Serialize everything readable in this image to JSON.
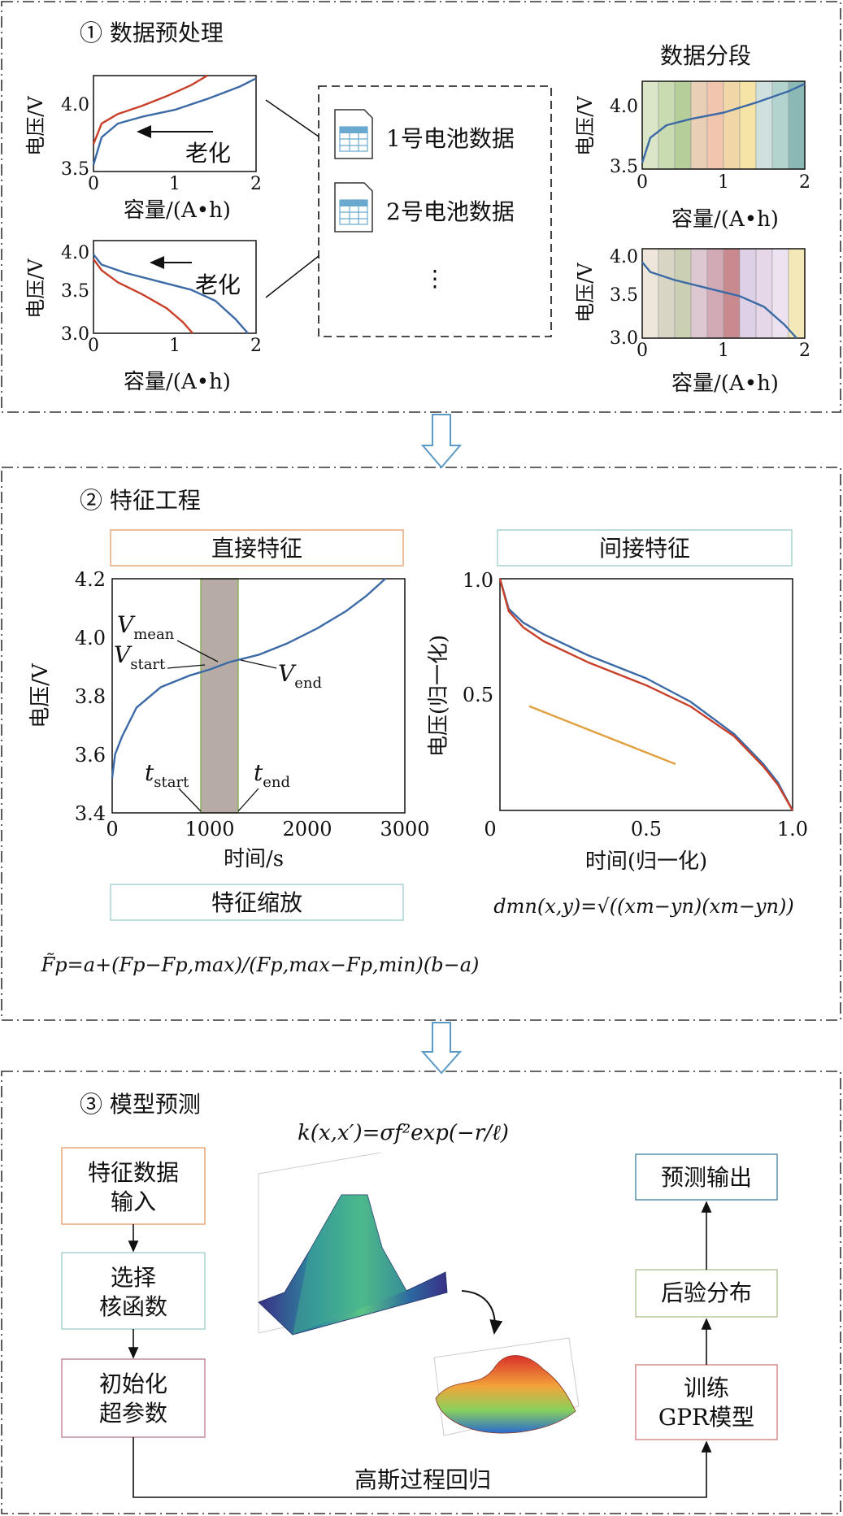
{
  "section1": {
    "title": "① 数据预处理",
    "segment_title": "数据分段",
    "ylabel": "电压/V",
    "xlabel": "容量/(A•h)",
    "aging_label": "老化",
    "charge_yticks": [
      "4.0",
      "3.5"
    ],
    "discharge_yticks": [
      "4.0",
      "3.5",
      "3.0"
    ],
    "xticks": [
      "0",
      "1",
      "2"
    ],
    "files": [
      "1号电池数据",
      "2号电池数据",
      "⋮"
    ],
    "colors": {
      "blue": "#3c6aa6",
      "red": "#c9402a"
    }
  },
  "section2": {
    "title": "② 特征工程",
    "direct_feature_label": "直接特征",
    "indirect_feature_label": "间接特征",
    "feature_scaling_label": "特征缩放",
    "direct_chart": {
      "ylabel": "电压/V",
      "xlabel": "时间/s",
      "yticks": [
        "4.2",
        "4.0",
        "3.8",
        "3.6",
        "3.4"
      ],
      "xticks": [
        "0",
        "1000",
        "2000",
        "3000"
      ],
      "annotations": {
        "v_mean": "V",
        "v_mean_sub": "mean",
        "v_start": "V",
        "v_start_sub": "start",
        "v_end": "V",
        "v_end_sub": "end",
        "t_start": "t",
        "t_start_sub": "start",
        "t_end": "t",
        "t_end_sub": "end"
      }
    },
    "indirect_chart": {
      "ylabel": "电压(归一化)",
      "xlabel": "时间(归一化)",
      "yticks": [
        "1.0",
        "0.5"
      ],
      "xticks": [
        "0",
        "0.5",
        "1.0"
      ]
    },
    "scaling_formula": "F̃p=a+(Fp−Fp,max)/(Fp,max−Fp,min)(b−a)",
    "distance_formula": "dmn(x,y)=√((xm−yn)(xm−yn))"
  },
  "section3": {
    "title": "③ 模型预测",
    "kernel_formula": "k(x,x′)=σf²exp(−r/ℓ)",
    "left_boxes": [
      "特征数据\n输入",
      "选择\n核函数",
      "初始化\n超参数"
    ],
    "right_boxes": [
      "预测输出",
      "后验分布",
      "训练\nGPR模型"
    ],
    "bottom_label": "高斯过程回归",
    "box_colors": [
      "#e9a77a",
      "#a9d4d2",
      "#c98aa0",
      "#5a8fa8",
      "#b9c79a",
      "#d98a8a"
    ]
  },
  "chart_data": [
    {
      "type": "line",
      "xlabel": "容量/(A•h)",
      "ylabel": "电压/V",
      "xlim": [
        0,
        2
      ],
      "ylim": [
        3.5,
        4.2
      ],
      "series": [
        {
          "x": [
            0,
            0.1,
            0.3,
            0.6,
            0.9,
            1.2,
            1.4
          ],
          "y": [
            3.7,
            3.85,
            3.92,
            3.98,
            4.05,
            4.13,
            4.2
          ]
        },
        {
          "x": [
            0,
            0.1,
            0.3,
            0.6,
            1.0,
            1.4,
            1.8,
            2.0
          ],
          "y": [
            3.55,
            3.75,
            3.85,
            3.9,
            3.95,
            4.03,
            4.12,
            4.18
          ]
        }
      ]
    },
    {
      "type": "line",
      "xlabel": "容量/(A•h)",
      "ylabel": "电压/V",
      "xlim": [
        0,
        2
      ],
      "ylim": [
        3.0,
        4.0
      ],
      "series": [
        {
          "x": [
            0,
            0.1,
            0.3,
            0.6,
            0.9,
            1.1,
            1.22
          ],
          "y": [
            3.8,
            3.68,
            3.55,
            3.42,
            3.27,
            3.12,
            3.0
          ]
        },
        {
          "x": [
            0,
            0.1,
            0.4,
            0.8,
            1.2,
            1.5,
            1.75,
            1.9
          ],
          "y": [
            3.85,
            3.74,
            3.65,
            3.56,
            3.47,
            3.35,
            3.15,
            3.0
          ]
        }
      ]
    },
    {
      "type": "area",
      "xlabel": "容量/(A•h)",
      "ylabel": "电压/V",
      "xlim": [
        0,
        2
      ],
      "ylim": [
        3.5,
        4.2
      ],
      "series": [
        {
          "x": [
            0,
            0.1,
            0.3,
            0.6,
            1.0,
            1.4,
            1.8,
            2.0
          ],
          "y": [
            3.55,
            3.75,
            3.85,
            3.9,
            3.95,
            4.03,
            4.12,
            4.18
          ]
        }
      ]
    },
    {
      "type": "area",
      "xlabel": "容量/(A•h)",
      "ylabel": "电压/V",
      "xlim": [
        0,
        2
      ],
      "ylim": [
        3.0,
        4.0
      ],
      "series": [
        {
          "x": [
            0,
            0.1,
            0.4,
            0.8,
            1.2,
            1.5,
            1.75,
            1.9
          ],
          "y": [
            3.85,
            3.74,
            3.65,
            3.56,
            3.47,
            3.35,
            3.15,
            3.0
          ]
        }
      ]
    },
    {
      "type": "line",
      "xlabel": "时间/s",
      "ylabel": "电压/V",
      "xlim": [
        0,
        3000
      ],
      "ylim": [
        3.4,
        4.2
      ],
      "highlight_x": [
        950,
        1300
      ],
      "series": [
        {
          "x": [
            0,
            30,
            100,
            250,
            500,
            800,
            1000,
            1200,
            1500,
            1800,
            2100,
            2400,
            2600,
            2800
          ],
          "y": [
            3.52,
            3.6,
            3.66,
            3.76,
            3.83,
            3.87,
            3.89,
            3.915,
            3.94,
            3.98,
            4.03,
            4.09,
            4.14,
            4.2
          ]
        }
      ]
    },
    {
      "type": "line",
      "xlabel": "时间(归一化)",
      "ylabel": "电压(归一化)",
      "xlim": [
        0,
        1
      ],
      "ylim": [
        0,
        1
      ],
      "series": [
        {
          "x": [
            0,
            0.03,
            0.08,
            0.15,
            0.3,
            0.5,
            0.65,
            0.8,
            0.9,
            0.95,
            1.0
          ],
          "y": [
            1.0,
            0.87,
            0.81,
            0.76,
            0.67,
            0.57,
            0.47,
            0.33,
            0.2,
            0.12,
            0.0
          ]
        },
        {
          "x": [
            0,
            0.03,
            0.08,
            0.15,
            0.3,
            0.5,
            0.65,
            0.8,
            0.9,
            0.95,
            1.0
          ],
          "y": [
            1.0,
            0.86,
            0.79,
            0.73,
            0.64,
            0.54,
            0.45,
            0.32,
            0.19,
            0.11,
            0.0
          ]
        },
        {
          "x": [
            0.1,
            0.6
          ],
          "y": [
            0.45,
            0.2
          ]
        }
      ]
    }
  ]
}
